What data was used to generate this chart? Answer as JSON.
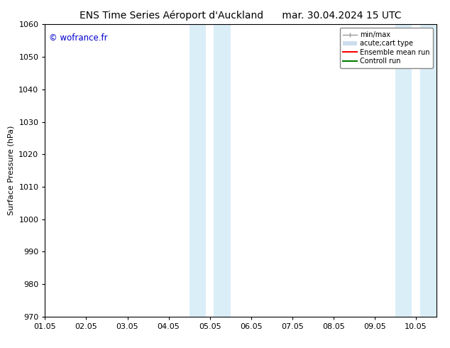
{
  "title_left": "ENS Time Series Aéroport d'Auckland",
  "title_right": "mar. 30.04.2024 15 UTC",
  "ylabel": "Surface Pressure (hPa)",
  "ylim": [
    970,
    1060
  ],
  "yticks": [
    970,
    980,
    990,
    1000,
    1010,
    1020,
    1030,
    1040,
    1050,
    1060
  ],
  "xlim_start": 0,
  "xlim_end": 9.5,
  "xtick_labels": [
    "01.05",
    "02.05",
    "03.05",
    "04.05",
    "05.05",
    "06.05",
    "07.05",
    "08.05",
    "09.05",
    "10.05"
  ],
  "xtick_positions": [
    0,
    1,
    2,
    3,
    4,
    5,
    6,
    7,
    8,
    9
  ],
  "watermark": "© wofrance.fr",
  "watermark_color": "#0000cc",
  "shaded_regions": [
    {
      "xmin": 3.5,
      "xmax": 3.9
    },
    {
      "xmin": 4.1,
      "xmax": 4.5
    },
    {
      "xmin": 8.5,
      "xmax": 8.9
    },
    {
      "xmin": 9.1,
      "xmax": 9.5
    }
  ],
  "shaded_color": "#daeef8",
  "bg_color": "#ffffff",
  "legend_items": [
    {
      "label": "min/max",
      "color": "#999999",
      "lw": 1.0
    },
    {
      "label": "acute;cart type",
      "color": "#ccddee",
      "lw": 6
    },
    {
      "label": "Ensemble mean run",
      "color": "#ff0000",
      "lw": 1.5
    },
    {
      "label": "Controll run",
      "color": "#008000",
      "lw": 1.5
    }
  ],
  "title_fontsize": 10,
  "axis_fontsize": 8,
  "tick_fontsize": 8
}
